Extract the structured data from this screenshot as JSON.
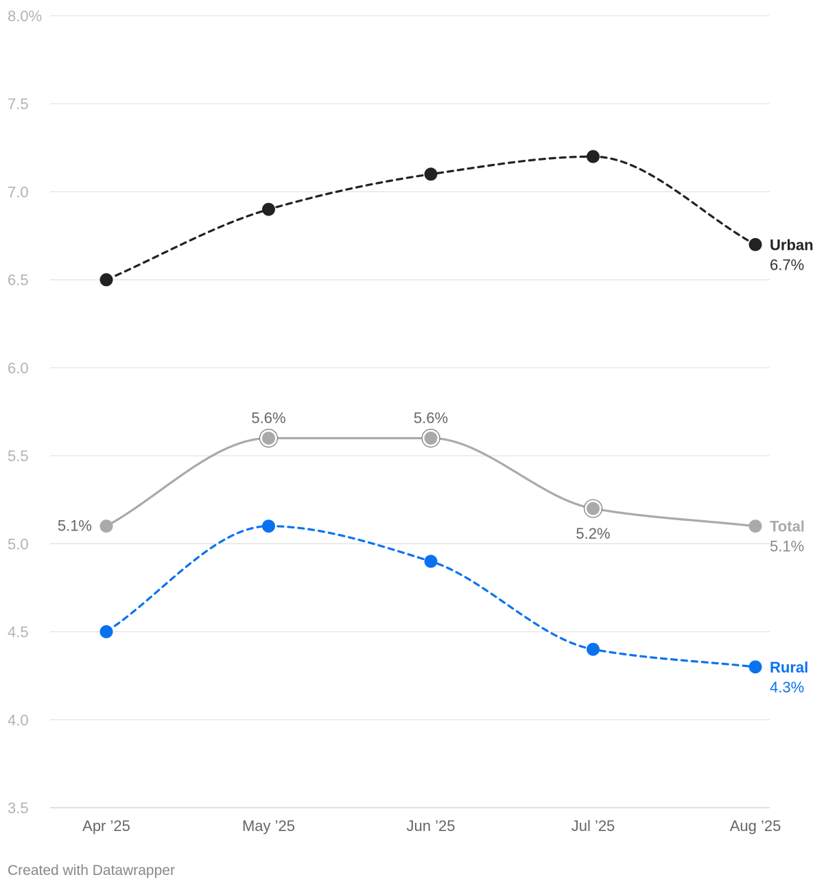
{
  "footer": {
    "credit": "Created with Datawrapper"
  },
  "chart_data": {
    "type": "line",
    "categories": [
      "Apr ’25",
      "May ’25",
      "Jun ’25",
      "Jul ’25",
      "Aug ’25"
    ],
    "ylim": [
      3.5,
      8.0
    ],
    "yticks": [
      {
        "value": 8.0,
        "label": "8.0%"
      },
      {
        "value": 7.5,
        "label": "7.5"
      },
      {
        "value": 7.0,
        "label": "7.0"
      },
      {
        "value": 6.5,
        "label": "6.5"
      },
      {
        "value": 6.0,
        "label": "6.0"
      },
      {
        "value": 5.5,
        "label": "5.5"
      },
      {
        "value": 5.0,
        "label": "5.0"
      },
      {
        "value": 4.5,
        "label": "4.5"
      },
      {
        "value": 4.0,
        "label": "4.0"
      },
      {
        "value": 3.5,
        "label": "3.5"
      }
    ],
    "grid": true,
    "series": [
      {
        "name": "Urban",
        "values": [
          6.5,
          6.9,
          7.1,
          7.2,
          6.7
        ],
        "end_label": "6.7%",
        "color": "#222222",
        "value_color": "#333333",
        "dashed": true
      },
      {
        "name": "Total",
        "values": [
          5.1,
          5.6,
          5.6,
          5.2,
          5.1
        ],
        "end_label": "5.1%",
        "color": "#aaaaaa",
        "value_color": "#888888",
        "dashed": false,
        "point_labels": [
          {
            "index": 0,
            "text": "5.1%",
            "position": "left"
          },
          {
            "index": 1,
            "text": "5.6%",
            "position": "above",
            "ringed": true
          },
          {
            "index": 2,
            "text": "5.6%",
            "position": "above",
            "ringed": true
          },
          {
            "index": 3,
            "text": "5.2%",
            "position": "below",
            "ringed": true
          }
        ]
      },
      {
        "name": "Rural",
        "values": [
          4.5,
          5.1,
          4.9,
          4.4,
          4.3
        ],
        "end_label": "4.3%",
        "color": "#0a72ef",
        "value_color": "#0a72ef",
        "dashed": true
      }
    ]
  }
}
